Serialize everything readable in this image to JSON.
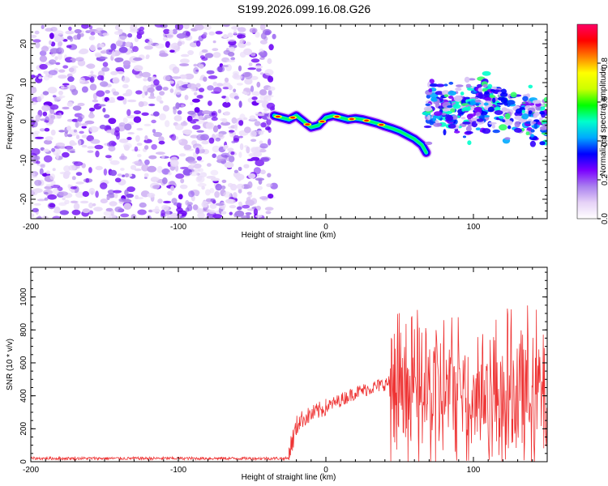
{
  "title": "S199.2026.099.16.08.G26",
  "chart_data": [
    {
      "type": "heatmap",
      "name": "spectrogram",
      "xlabel": "Height of straight line (km)",
      "ylabel": "Frequency (Hz)",
      "xlim": [
        -200,
        150
      ],
      "ylim": [
        -25,
        25
      ],
      "xticks": [
        -200,
        -100,
        0,
        100
      ],
      "xtick_labels": [
        "-200",
        "-100",
        "0",
        "100"
      ],
      "yticks": [
        -20,
        -10,
        0,
        10,
        20
      ],
      "ytick_labels": [
        "-20",
        "-10",
        "0",
        "10",
        "20"
      ],
      "noise_region_x": [
        -200,
        -35
      ],
      "ridge": {
        "x": [
          -35,
          -30,
          -25,
          -20,
          -15,
          -10,
          -5,
          0,
          5,
          10,
          15,
          20,
          25,
          30,
          35,
          40,
          45,
          50,
          55,
          60,
          65,
          68
        ],
        "y": [
          1.5,
          1.0,
          0.5,
          1.5,
          0.0,
          -1.5,
          -1.0,
          1.0,
          1.5,
          1.0,
          0.5,
          0.8,
          0.5,
          0.0,
          -0.5,
          -1.2,
          -1.8,
          -2.5,
          -3.5,
          -4.5,
          -6.0,
          -8.0
        ]
      },
      "scatter_region": {
        "x": [
          68,
          150
        ],
        "y_center": [
          [
            68,
            3.0
          ],
          [
            80,
            3.5
          ],
          [
            90,
            3.0
          ],
          [
            100,
            3.5
          ],
          [
            110,
            4.5
          ],
          [
            120,
            3.5
          ],
          [
            130,
            2.5
          ],
          [
            140,
            1.0
          ],
          [
            150,
            0.0
          ]
        ],
        "spread": 4
      },
      "colorbar": {
        "label": "Normalized spectral amplitude",
        "range": [
          0,
          1
        ],
        "ticks": [
          0.0,
          0.2,
          0.4,
          0.6,
          0.8
        ],
        "tick_labels": [
          "0.0",
          "0.2",
          "0.4",
          "0.6",
          "0.8"
        ],
        "colors": [
          "#ffffff",
          "#e6d2f7",
          "#a97fef",
          "#7a00ff",
          "#0000ff",
          "#00aaff",
          "#00ffcc",
          "#00ff00",
          "#ccff00",
          "#ffff00",
          "#ff8000",
          "#ff0000",
          "#ff0066"
        ]
      }
    },
    {
      "type": "line",
      "name": "snr",
      "xlabel": "Height of straight line (km)",
      "ylabel": "SNR (10 * v/v)",
      "xlim": [
        -200,
        150
      ],
      "ylim": [
        0,
        1180
      ],
      "xticks": [
        -200,
        -100,
        0,
        100
      ],
      "xtick_labels": [
        "-200",
        "-100",
        "0",
        "100"
      ],
      "yticks": [
        0,
        200,
        400,
        600,
        800,
        1000
      ],
      "ytick_labels": [
        "0",
        "200",
        "400",
        "600",
        "800",
        "1000"
      ],
      "color": "#ee3333",
      "segments": [
        {
          "x_range": [
            -200,
            -25
          ],
          "level": [
            20,
            20
          ],
          "amp": 15
        },
        {
          "x_range": [
            -25,
            -18
          ],
          "level": [
            60,
            260
          ],
          "amp": 120
        },
        {
          "x_range": [
            -18,
            0
          ],
          "level": [
            250,
            330
          ],
          "amp": 90
        },
        {
          "x_range": [
            0,
            20
          ],
          "level": [
            330,
            420
          ],
          "amp": 70
        },
        {
          "x_range": [
            20,
            43
          ],
          "level": [
            420,
            480
          ],
          "amp": 70
        },
        {
          "x_range": [
            43,
            150
          ],
          "level": [
            420,
            420
          ],
          "amp": 450
        }
      ]
    }
  ]
}
